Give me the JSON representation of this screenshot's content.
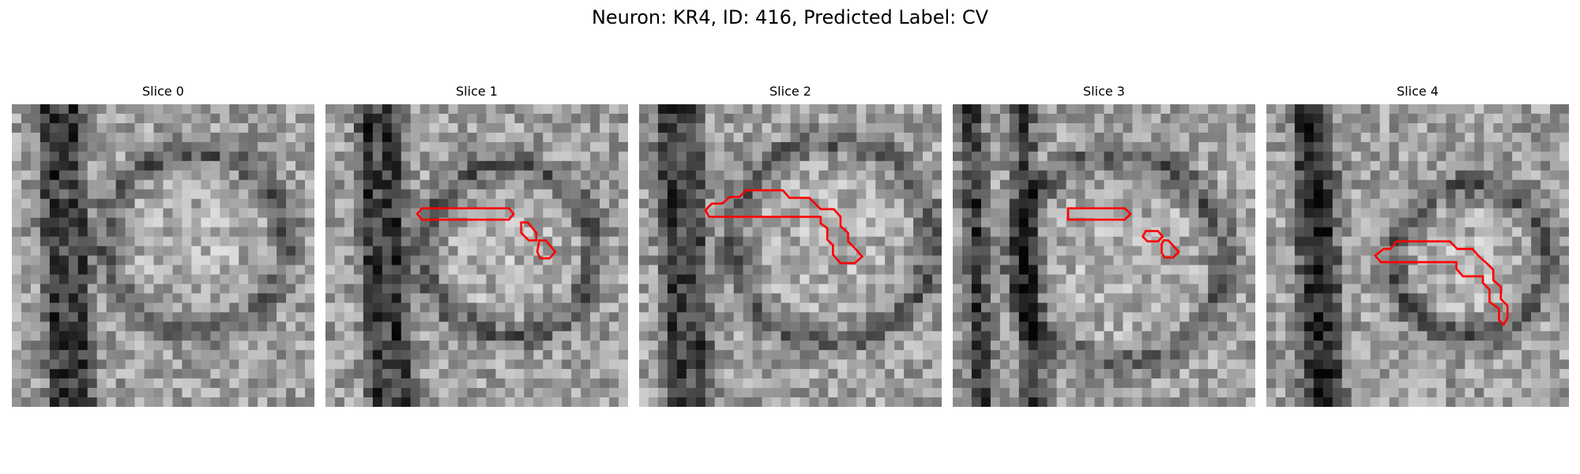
{
  "figure": {
    "title": "Neuron: KR4, ID: 416, Predicted Label: CV"
  },
  "panels": [
    {
      "title": "Slice 0",
      "has_contour": false
    },
    {
      "title": "Slice 1",
      "has_contour": true
    },
    {
      "title": "Slice 2",
      "has_contour": true
    },
    {
      "title": "Slice 3",
      "has_contour": true
    },
    {
      "title": "Slice 4",
      "has_contour": true
    }
  ],
  "colors": {
    "contour": "#ff0000",
    "background": "#ffffff"
  }
}
